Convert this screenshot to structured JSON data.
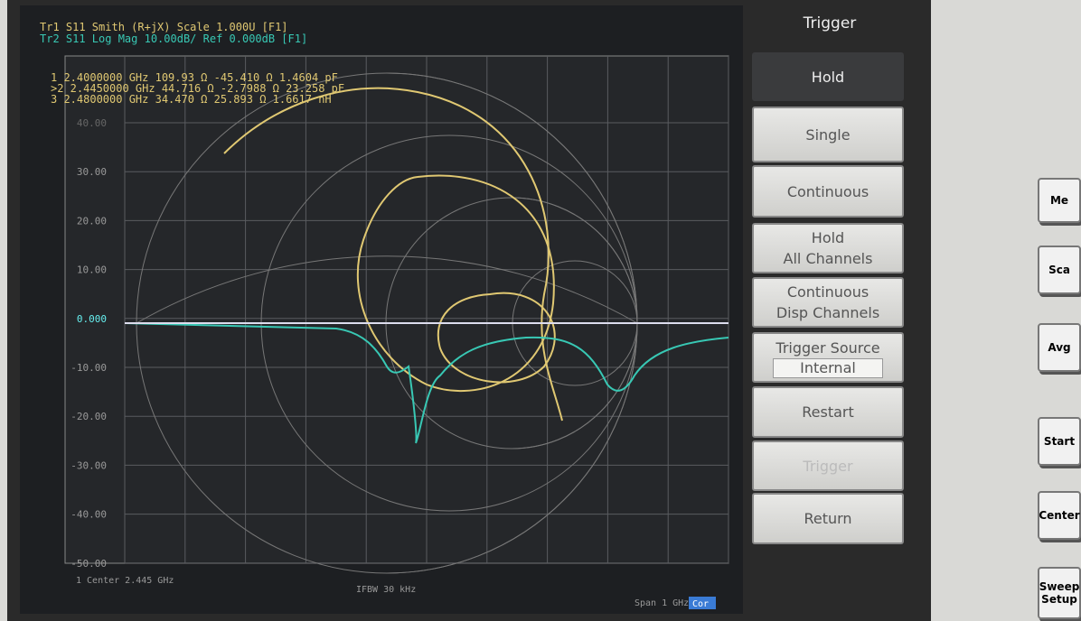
{
  "screen": {
    "trace_lines": [
      "Tr1 S11 Smith (R+jX) Scale 1.000U [F1]",
      "Tr2 S11 Log Mag 10.00dB/ Ref 0.000dB [F1]"
    ],
    "markers": [
      "1   2.4000000 GHz   109.93 Ω  -45.410 Ω   1.4604 pF",
      ">2  2.4450000 GHz   44.716 Ω  -2.7988 Ω   23.258 pF",
      "3   2.4800000 GHz   34.470 Ω   25.893 Ω   1.6617 nH"
    ],
    "y_labels": [
      "40.00",
      "30.00",
      "20.00",
      "10.00",
      "0.000",
      "-10.00",
      "-20.00",
      "-30.00",
      "-40.00",
      "-50.00"
    ],
    "status": {
      "center": "1  Center 2.445 GHz",
      "ifbw": "IFBW 30 kHz",
      "span": "Span 1 GHz",
      "cor": "Cor"
    }
  },
  "softkeys": {
    "title": "Trigger",
    "keys": [
      [
        "Hold"
      ],
      [
        "Single"
      ],
      [
        "Continuous"
      ],
      [
        "Hold",
        "All Channels"
      ],
      [
        "Continuous",
        "Disp Channels"
      ],
      [
        "Trigger Source",
        "Internal"
      ],
      [
        "Restart"
      ],
      [
        "Trigger"
      ],
      [
        "Return"
      ]
    ]
  },
  "hardware_keys": [
    "Me",
    "Sca",
    "Avg",
    "Start",
    "Center",
    "Sweep Setup"
  ]
}
